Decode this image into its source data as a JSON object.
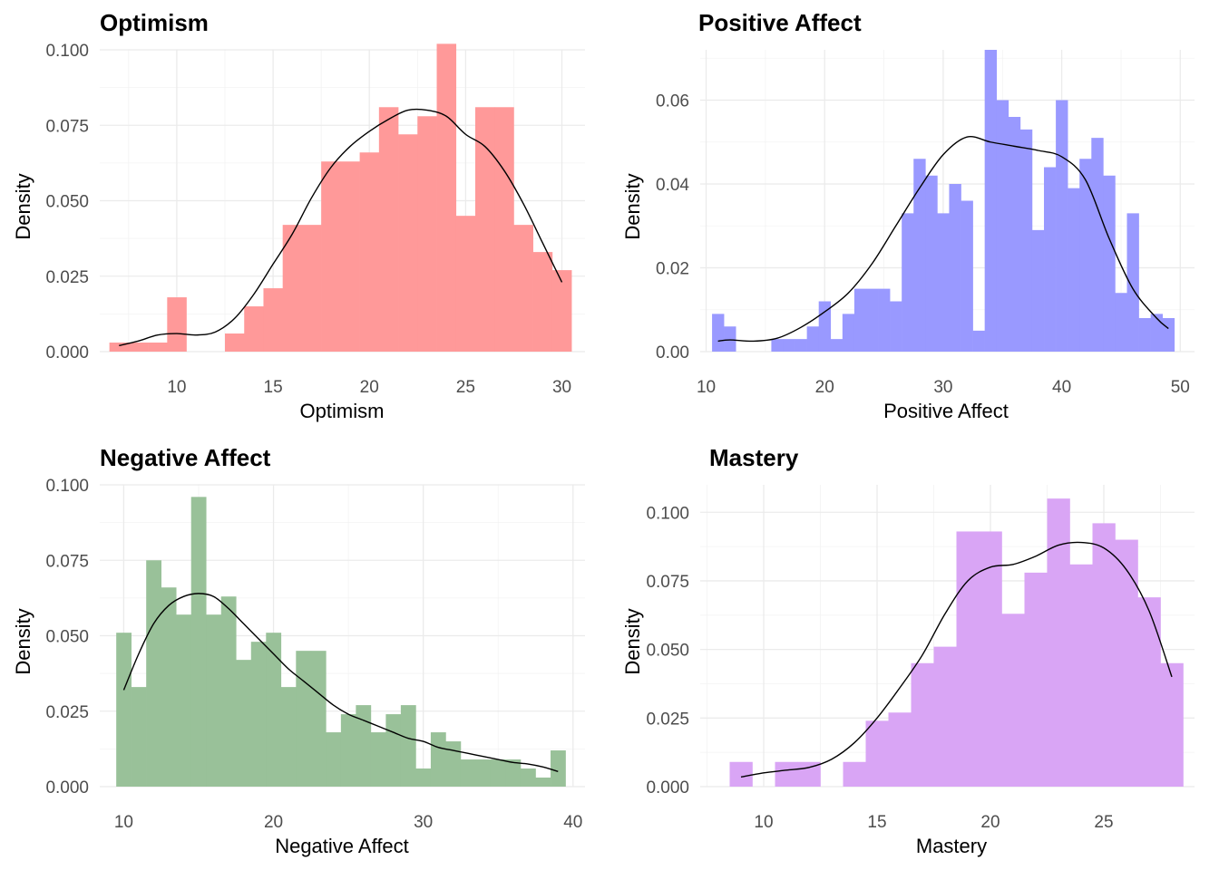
{
  "chart_data": [
    {
      "type": "bar",
      "title": "Optimism",
      "xlabel": "Optimism",
      "ylabel": "Density",
      "fill": "#ff9999",
      "xlim": [
        6,
        31.2
      ],
      "ylim": [
        0,
        0.1
      ],
      "xticks": [
        10,
        15,
        20,
        25,
        30
      ],
      "xtick_labels": [
        "10",
        "15",
        "20",
        "25",
        "30"
      ],
      "yticks": [
        0,
        0.025,
        0.05,
        0.075,
        0.1
      ],
      "ytick_labels": [
        "0.000",
        "0.025",
        "0.050",
        "0.075",
        "0.100"
      ],
      "bin_start": 6.5,
      "bin_width": 1,
      "values": [
        0.003,
        0.003,
        0.003,
        0.018,
        0,
        0,
        0.006,
        0.015,
        0.021,
        0.042,
        0.042,
        0.063,
        0.063,
        0.066,
        0.081,
        0.072,
        0.078,
        0.102,
        0.045,
        0.081,
        0.081,
        0.042,
        0.033,
        0.027
      ],
      "density_x": [
        7,
        8,
        9,
        10,
        11,
        12,
        13,
        14,
        15,
        16,
        17,
        18,
        19,
        20,
        21,
        22,
        23,
        24,
        25,
        26,
        27,
        28,
        29,
        30
      ],
      "density_y": [
        0.002,
        0.0035,
        0.0055,
        0.006,
        0.0055,
        0.0065,
        0.011,
        0.019,
        0.029,
        0.039,
        0.051,
        0.061,
        0.068,
        0.073,
        0.077,
        0.08,
        0.08,
        0.078,
        0.072,
        0.068,
        0.06,
        0.049,
        0.036,
        0.023
      ]
    },
    {
      "type": "bar",
      "title": "Positive Affect",
      "xlabel": "Positive Affect",
      "ylabel": "Density",
      "fill": "#9999ff",
      "xlim": [
        9.5,
        51.2
      ],
      "ylim": [
        0,
        0.072
      ],
      "xticks": [
        10,
        20,
        30,
        40,
        50
      ],
      "xtick_labels": [
        "10",
        "20",
        "30",
        "40",
        "50"
      ],
      "yticks": [
        0,
        0.02,
        0.04,
        0.06
      ],
      "ytick_labels": [
        "0.00",
        "0.02",
        "0.04",
        "0.06"
      ],
      "bin_start": 10.5,
      "bin_width": 1,
      "values": [
        0.009,
        0.006,
        0,
        0,
        0,
        0.003,
        0.003,
        0.003,
        0.006,
        0.012,
        0.003,
        0.009,
        0.015,
        0.015,
        0.015,
        0.012,
        0.033,
        0.046,
        0.042,
        0.033,
        0.04,
        0.036,
        0.005,
        0.072,
        0.06,
        0.056,
        0.053,
        0.029,
        0.044,
        0.06,
        0.039,
        0.046,
        0.051,
        0.042,
        0.014,
        0.033,
        0.008,
        0.009,
        0.008
      ],
      "density_x": [
        11,
        12,
        14,
        16,
        18,
        20,
        22,
        24,
        26,
        28,
        30,
        32,
        34,
        36,
        38,
        40,
        42,
        44,
        46,
        48,
        49
      ],
      "density_y": [
        0.0025,
        0.0028,
        0.0025,
        0.0032,
        0.0058,
        0.0095,
        0.014,
        0.021,
        0.03,
        0.039,
        0.047,
        0.0512,
        0.05,
        0.049,
        0.048,
        0.0465,
        0.041,
        0.027,
        0.015,
        0.008,
        0.0055
      ]
    },
    {
      "type": "bar",
      "title": "Negative Affect",
      "xlabel": "Negative Affect",
      "ylabel": "Density",
      "fill": "#99c199",
      "xlim": [
        8.4,
        40.8
      ],
      "ylim": [
        0,
        0.1
      ],
      "xticks": [
        10,
        20,
        30,
        40
      ],
      "xtick_labels": [
        "10",
        "20",
        "30",
        "40"
      ],
      "yticks": [
        0,
        0.025,
        0.05,
        0.075,
        0.1
      ],
      "ytick_labels": [
        "0.000",
        "0.025",
        "0.050",
        "0.075",
        "0.100"
      ],
      "bin_start": 9.5,
      "bin_width": 1,
      "values": [
        0.051,
        0.033,
        0.075,
        0.066,
        0.057,
        0.096,
        0.057,
        0.063,
        0.042,
        0.048,
        0.051,
        0.033,
        0.045,
        0.045,
        0.018,
        0.024,
        0.027,
        0.018,
        0.024,
        0.027,
        0.006,
        0.018,
        0.015,
        0.009,
        0.009,
        0.009,
        0.009,
        0.006,
        0.003,
        0.012
      ],
      "density_x": [
        10,
        11,
        12,
        13,
        14,
        15,
        16,
        17,
        18,
        19,
        20,
        21,
        22,
        23,
        24,
        25,
        26,
        27,
        28,
        29,
        30,
        31,
        32,
        33,
        34,
        35,
        36,
        37,
        38,
        39
      ],
      "density_y": [
        0.032,
        0.044,
        0.054,
        0.06,
        0.063,
        0.064,
        0.063,
        0.059,
        0.054,
        0.049,
        0.044,
        0.039,
        0.035,
        0.031,
        0.027,
        0.024,
        0.022,
        0.02,
        0.018,
        0.016,
        0.015,
        0.013,
        0.012,
        0.011,
        0.01,
        0.009,
        0.008,
        0.0075,
        0.0065,
        0.005
      ]
    },
    {
      "type": "bar",
      "title": "Mastery",
      "xlabel": "Mastery",
      "ylabel": "Density",
      "fill": "#d9a5f5",
      "xlim": [
        7.2,
        29
      ],
      "ylim": [
        0,
        0.11
      ],
      "xticks": [
        10,
        15,
        20,
        25
      ],
      "xtick_labels": [
        "10",
        "15",
        "20",
        "25"
      ],
      "yticks": [
        0,
        0.025,
        0.05,
        0.075,
        0.1
      ],
      "ytick_labels": [
        "0.000",
        "0.025",
        "0.050",
        "0.075",
        "0.100"
      ],
      "bin_start": 8.5,
      "bin_width": 1,
      "values": [
        0.009,
        0,
        0.009,
        0.009,
        0,
        0.009,
        0.024,
        0.027,
        0.045,
        0.051,
        0.093,
        0.093,
        0.063,
        0.078,
        0.105,
        0.081,
        0.096,
        0.09,
        0.069,
        0.045
      ],
      "density_x": [
        9,
        10,
        11,
        12,
        13,
        14,
        15,
        16,
        17,
        18,
        19,
        20,
        21,
        22,
        23,
        24,
        25,
        26,
        27,
        28
      ],
      "density_y": [
        0.0035,
        0.005,
        0.006,
        0.007,
        0.01,
        0.016,
        0.025,
        0.036,
        0.048,
        0.063,
        0.075,
        0.08,
        0.081,
        0.084,
        0.088,
        0.089,
        0.087,
        0.079,
        0.064,
        0.04
      ]
    }
  ]
}
